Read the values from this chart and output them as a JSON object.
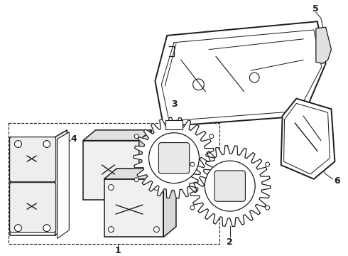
{
  "bg_color": "#ffffff",
  "line_color": "#1a1a1a",
  "label_color": "#111111",
  "figsize": [
    4.9,
    3.6
  ],
  "dpi": 100
}
